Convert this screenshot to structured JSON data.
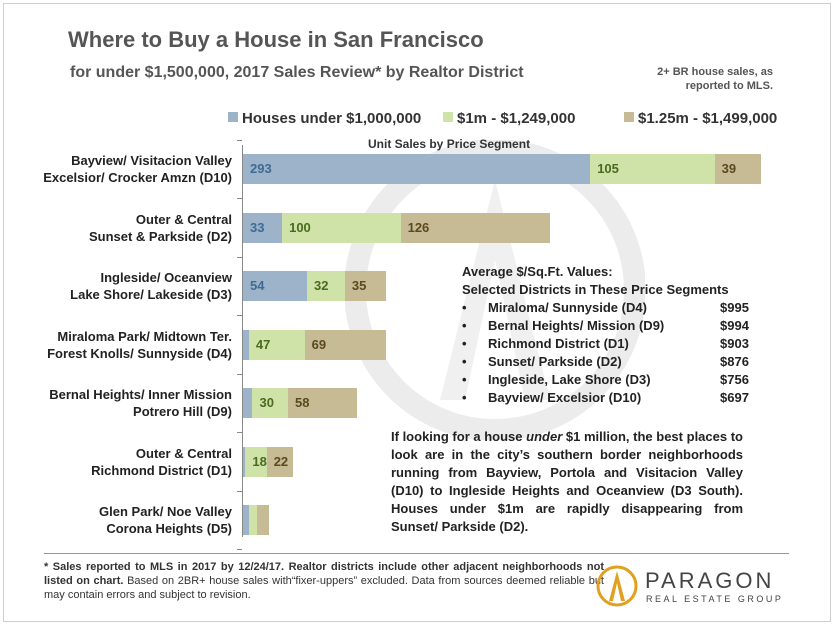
{
  "title": "Where to Buy a House in San Francisco",
  "subtitle": "for under $1,500,000, 2017 Sales Review* by Realtor District",
  "note": "2+ BR house sales, as reported to MLS.",
  "chart_data": {
    "type": "bar",
    "orientation": "horizontal",
    "stacked": true,
    "subtitle": "Unit Sales by Price Segment",
    "categories": [
      "Bayview/ Visitacion Valley Excelsior/ Crocker Amzn (D10)",
      "Outer & Central Sunset & Parkside (D2)",
      "Ingleside/ Oceanview Lake Shore/ Lakeside (D3)",
      "Miraloma Park/ Midtown Ter. Forest Knolls/ Sunnyside (D4)",
      "Bernal Heights/ Inner Mission Potrero Hill (D9)",
      "Outer & Central Richmond District (D1)",
      "Glen Park/ Noe Valley Corona Heights (D5)"
    ],
    "category_lines": [
      [
        "Bayview/ Visitacion Valley",
        "Excelsior/ Crocker Amzn (D10)"
      ],
      [
        "Outer & Central",
        "Sunset & Parkside (D2)"
      ],
      [
        "Ingleside/ Oceanview",
        "Lake Shore/ Lakeside (D3)"
      ],
      [
        "Miraloma Park/ Midtown Ter.",
        "Forest Knolls/ Sunnyside (D4)"
      ],
      [
        "Bernal Heights/ Inner Mission",
        "Potrero Hill (D9)"
      ],
      [
        "Outer & Central",
        "Richmond District (D1)"
      ],
      [
        "Glen Park/ Noe Valley",
        "Corona Heights (D5)"
      ]
    ],
    "series": [
      {
        "name": "Houses under $1,000,000",
        "color": "#9cb3c9",
        "label_color": "#3e6b95",
        "values": [
          293,
          33,
          54,
          5,
          8,
          2,
          5
        ],
        "labels": [
          "293",
          "33",
          "54",
          "",
          "",
          "",
          ""
        ]
      },
      {
        "name": "$1m - $1,249,000",
        "color": "#cfe3a8",
        "label_color": "#4a6a1f",
        "values": [
          105,
          100,
          32,
          47,
          30,
          18,
          7
        ],
        "labels": [
          "105",
          "100",
          "32",
          "47",
          "30",
          "18",
          ""
        ]
      },
      {
        "name": "$1.25m - $1,499,000",
        "color": "#c6bb95",
        "label_color": "#5a4a1e",
        "values": [
          39,
          126,
          35,
          69,
          58,
          22,
          10
        ],
        "labels": [
          "39",
          "126",
          "35",
          "69",
          "58",
          "22",
          ""
        ]
      }
    ],
    "legend_position": "top",
    "grid": false
  },
  "avg_box": {
    "heading1": "Average  $/Sq.Ft. Values:",
    "heading2": "Selected Districts in These Price Segments",
    "rows": [
      {
        "name": "Miraloma/ Sunnyside (D4)",
        "value": "$995"
      },
      {
        "name": "Bernal Heights/ Mission (D9)",
        "value": "$994"
      },
      {
        "name": "Richmond  District (D1)",
        "value": "$903"
      },
      {
        "name": "Sunset/ Parkside (D2)",
        "value": "$876"
      },
      {
        "name": "Ingleside, Lake Shore (D3)",
        "value": "$756"
      },
      {
        "name": "Bayview/ Excelsior (D10)",
        "value": "$697"
      }
    ]
  },
  "paragraph": {
    "pre": "If looking for a house ",
    "em": "under",
    "post": " $1 million, the best places to look are in the city’s southern border neighborhoods running from Bayview, Portola and Visitacion Valley (D10) to Ingleside Heights and Oceanview (D3 South). Houses under $1m are rapidly disappearing from Sunset/ Parkside (D2)."
  },
  "footer": {
    "bold": "* Sales reported to MLS in 2017 by 12/24/17. Realtor districts include other adjacent neighborhoods not listed on chart.",
    "rest": " Based on 2BR+ house sales with“fixer-uppers” excluded. Data from sources deemed reliable but may contain errors and subject to revision."
  },
  "logo": {
    "word": "PARAGON",
    "sub": "REAL ESTATE GROUP",
    "color": "#e0a020"
  }
}
